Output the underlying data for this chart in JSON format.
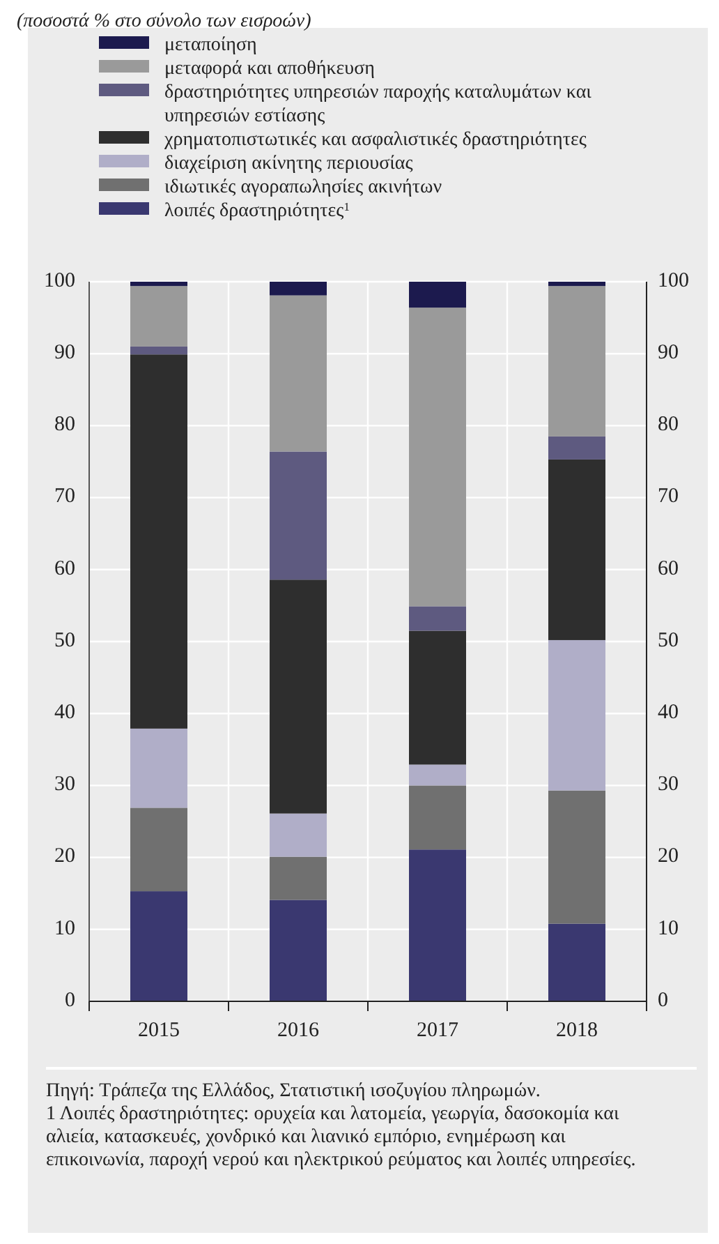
{
  "chart_data": {
    "type": "bar",
    "subtitle": "(ποσοστά % στο σύνολο των εισροών)",
    "categories": [
      "2015",
      "2016",
      "2017",
      "2018"
    ],
    "stacked": true,
    "series": [
      {
        "name": "λοιπές δραστηριότητες$^{1}$",
        "color": "#3a3870",
        "values": [
          15.3,
          14.1,
          21.1,
          10.8
        ]
      },
      {
        "name": "ιδιωτικές αγοραπωλησίες  ακινήτων",
        "color": "#707070",
        "values": [
          11.6,
          6.0,
          8.9,
          18.5
        ]
      },
      {
        "name": "διαχείριση ακίνητης περιουσίας",
        "color": "#b0aec8",
        "values": [
          11.0,
          6.0,
          2.9,
          20.9
        ]
      },
      {
        "name": "χρηματοπιστωτικές και ασφαλιστικές δραστηριότητες",
        "color": "#2e2e2e",
        "values": [
          52.0,
          32.5,
          18.6,
          25.1
        ]
      },
      {
        "name": "δραστηριότητες υπηρεσιών παροχής καταλυμάτων και υπηρεσιών εστίασης",
        "color": "#5e5a80",
        "values": [
          1.1,
          17.8,
          3.4,
          3.2
        ]
      },
      {
        "name": "μεταφορά και αποθήκευση",
        "color": "#9a9a9a",
        "values": [
          8.4,
          21.7,
          41.5,
          20.9
        ]
      },
      {
        "name": "μεταποίηση",
        "color": "#1c1a4e",
        "values": [
          0.6,
          1.9,
          3.6,
          0.6
        ]
      }
    ],
    "ylim": [
      0,
      100
    ],
    "yticks": [
      0,
      10,
      20,
      30,
      40,
      50,
      60,
      70,
      80,
      90,
      100
    ],
    "y2lim": [
      0,
      100
    ],
    "y2ticks": [
      0,
      10,
      20,
      30,
      40,
      50,
      60,
      70,
      80,
      90,
      100
    ],
    "grid": true,
    "legend": "top",
    "annotations": [
      "Πηγή: Τράπεζα της Ελλάδος, Στατιστική ισοζυγίου πληρωμών.",
      "1 Λοιπές δραστηριότητες: ορυχεία και λατομεία, γεωργία, δασοκομία και αλιεία, κατασκευές, χονδρικό και λιανικό εμπόριο, ενημέρωση και επικοινωνία, παροχή νερού και ηλεκτρικού ρεύματος και λοιπές υπηρεσίες."
    ]
  }
}
